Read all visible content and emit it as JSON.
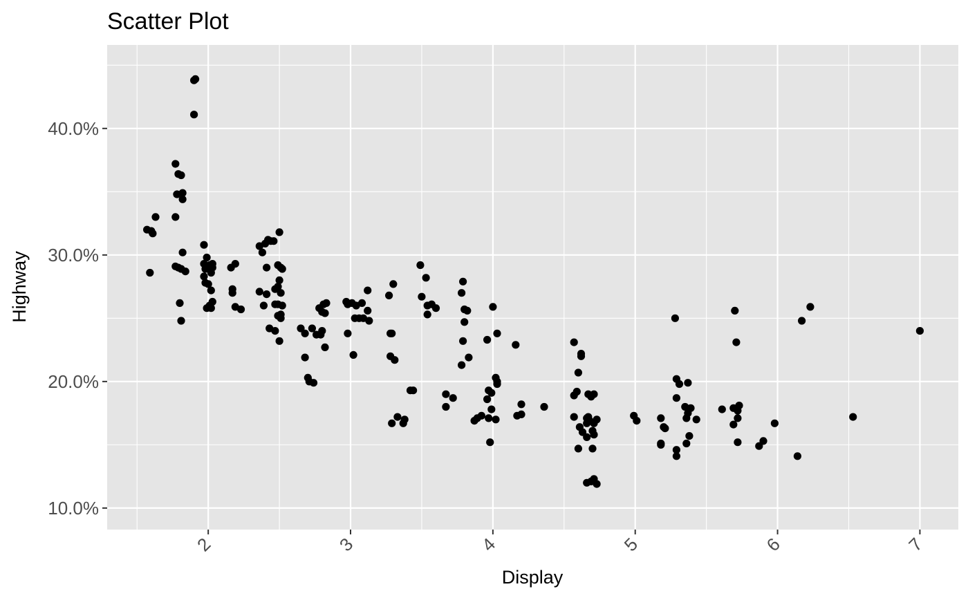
{
  "chart_data": {
    "type": "scatter",
    "title": "Scatter Plot",
    "xlabel": "Display",
    "ylabel": "Highway",
    "x_ticks": [
      2,
      3,
      4,
      5,
      6,
      7
    ],
    "x_tick_labels": [
      "2",
      "3",
      "4",
      "5",
      "6",
      "7"
    ],
    "y_ticks": [
      0.1,
      0.2,
      0.3,
      0.4
    ],
    "y_tick_labels": [
      "10.0%",
      "20.0%",
      "30.0%",
      "40.0%"
    ],
    "xlim": [
      1.29,
      7.27
    ],
    "ylim": [
      0.083,
      0.466
    ],
    "grid": true,
    "legend": "none",
    "colors": {
      "panel": "#e5e5e5",
      "grid": "#ffffff",
      "point": "#000000"
    },
    "points": [
      [
        1.57,
        0.32
      ],
      [
        1.6,
        0.319
      ],
      [
        1.61,
        0.317
      ],
      [
        1.63,
        0.33
      ],
      [
        1.59,
        0.286
      ],
      [
        1.9,
        0.438
      ],
      [
        1.91,
        0.439
      ],
      [
        1.9,
        0.411
      ],
      [
        1.77,
        0.372
      ],
      [
        1.79,
        0.364
      ],
      [
        1.81,
        0.363
      ],
      [
        1.78,
        0.348
      ],
      [
        1.82,
        0.349
      ],
      [
        1.82,
        0.344
      ],
      [
        1.77,
        0.33
      ],
      [
        1.77,
        0.291
      ],
      [
        1.79,
        0.29
      ],
      [
        1.81,
        0.289
      ],
      [
        1.82,
        0.302
      ],
      [
        1.84,
        0.287
      ],
      [
        1.8,
        0.262
      ],
      [
        1.81,
        0.248
      ],
      [
        1.97,
        0.308
      ],
      [
        1.99,
        0.298
      ],
      [
        1.97,
        0.293
      ],
      [
        2.01,
        0.292
      ],
      [
        2.03,
        0.293
      ],
      [
        2.03,
        0.29
      ],
      [
        1.98,
        0.289
      ],
      [
        2.02,
        0.286
      ],
      [
        1.97,
        0.283
      ],
      [
        1.98,
        0.278
      ],
      [
        2.0,
        0.277
      ],
      [
        2.02,
        0.272
      ],
      [
        2.03,
        0.263
      ],
      [
        2.01,
        0.26
      ],
      [
        1.99,
        0.258
      ],
      [
        2.02,
        0.258
      ],
      [
        2.16,
        0.29
      ],
      [
        2.19,
        0.293
      ],
      [
        2.17,
        0.273
      ],
      [
        2.17,
        0.27
      ],
      [
        2.19,
        0.259
      ],
      [
        2.23,
        0.257
      ],
      [
        2.36,
        0.307
      ],
      [
        2.38,
        0.302
      ],
      [
        2.4,
        0.309
      ],
      [
        2.42,
        0.312
      ],
      [
        2.44,
        0.311
      ],
      [
        2.46,
        0.311
      ],
      [
        2.5,
        0.318
      ],
      [
        2.41,
        0.29
      ],
      [
        2.49,
        0.292
      ],
      [
        2.51,
        0.29
      ],
      [
        2.52,
        0.289
      ],
      [
        2.5,
        0.28
      ],
      [
        2.36,
        0.271
      ],
      [
        2.41,
        0.269
      ],
      [
        2.47,
        0.273
      ],
      [
        2.49,
        0.275
      ],
      [
        2.51,
        0.27
      ],
      [
        2.39,
        0.26
      ],
      [
        2.47,
        0.261
      ],
      [
        2.49,
        0.261
      ],
      [
        2.52,
        0.26
      ],
      [
        2.49,
        0.252
      ],
      [
        2.51,
        0.253
      ],
      [
        2.51,
        0.25
      ],
      [
        2.43,
        0.242
      ],
      [
        2.47,
        0.24
      ],
      [
        2.5,
        0.232
      ],
      [
        2.65,
        0.242
      ],
      [
        2.68,
        0.238
      ],
      [
        2.73,
        0.242
      ],
      [
        2.76,
        0.237
      ],
      [
        2.79,
        0.237
      ],
      [
        2.8,
        0.24
      ],
      [
        2.68,
        0.219
      ],
      [
        2.7,
        0.203
      ],
      [
        2.71,
        0.2
      ],
      [
        2.74,
        0.199
      ],
      [
        2.78,
        0.258
      ],
      [
        2.81,
        0.261
      ],
      [
        2.83,
        0.262
      ],
      [
        2.8,
        0.255
      ],
      [
        2.82,
        0.254
      ],
      [
        2.82,
        0.227
      ],
      [
        2.97,
        0.263
      ],
      [
        3.01,
        0.262
      ],
      [
        3.04,
        0.26
      ],
      [
        3.08,
        0.262
      ],
      [
        2.98,
        0.261
      ],
      [
        3.12,
        0.272
      ],
      [
        3.03,
        0.25
      ],
      [
        3.06,
        0.25
      ],
      [
        3.09,
        0.25
      ],
      [
        3.13,
        0.248
      ],
      [
        3.12,
        0.256
      ],
      [
        2.98,
        0.238
      ],
      [
        3.02,
        0.221
      ],
      [
        3.27,
        0.268
      ],
      [
        3.3,
        0.277
      ],
      [
        3.28,
        0.238
      ],
      [
        3.29,
        0.238
      ],
      [
        3.28,
        0.22
      ],
      [
        3.31,
        0.217
      ],
      [
        3.29,
        0.167
      ],
      [
        3.33,
        0.172
      ],
      [
        3.37,
        0.167
      ],
      [
        3.38,
        0.17
      ],
      [
        3.42,
        0.193
      ],
      [
        3.44,
        0.193
      ],
      [
        3.49,
        0.292
      ],
      [
        3.53,
        0.282
      ],
      [
        3.5,
        0.267
      ],
      [
        3.54,
        0.26
      ],
      [
        3.57,
        0.261
      ],
      [
        3.6,
        0.258
      ],
      [
        3.54,
        0.253
      ],
      [
        3.67,
        0.19
      ],
      [
        3.72,
        0.187
      ],
      [
        3.67,
        0.18
      ],
      [
        3.79,
        0.279
      ],
      [
        3.78,
        0.27
      ],
      [
        3.8,
        0.257
      ],
      [
        3.82,
        0.256
      ],
      [
        3.8,
        0.247
      ],
      [
        3.79,
        0.232
      ],
      [
        3.78,
        0.213
      ],
      [
        3.83,
        0.219
      ],
      [
        3.87,
        0.169
      ],
      [
        3.89,
        0.171
      ],
      [
        3.92,
        0.173
      ],
      [
        3.97,
        0.171
      ],
      [
        3.98,
        0.152
      ],
      [
        3.96,
        0.233
      ],
      [
        4.0,
        0.259
      ],
      [
        4.03,
        0.238
      ],
      [
        4.02,
        0.203
      ],
      [
        4.03,
        0.2
      ],
      [
        4.03,
        0.198
      ],
      [
        3.97,
        0.193
      ],
      [
        3.99,
        0.191
      ],
      [
        3.96,
        0.186
      ],
      [
        3.99,
        0.178
      ],
      [
        4.02,
        0.17
      ],
      [
        4.16,
        0.229
      ],
      [
        4.2,
        0.182
      ],
      [
        4.2,
        0.174
      ],
      [
        4.17,
        0.173
      ],
      [
        4.36,
        0.18
      ],
      [
        4.57,
        0.231
      ],
      [
        4.62,
        0.222
      ],
      [
        4.62,
        0.22
      ],
      [
        4.6,
        0.207
      ],
      [
        4.59,
        0.192
      ],
      [
        4.57,
        0.189
      ],
      [
        4.57,
        0.172
      ],
      [
        4.61,
        0.164
      ],
      [
        4.63,
        0.16
      ],
      [
        4.6,
        0.147
      ],
      [
        4.66,
        0.171
      ],
      [
        4.67,
        0.172
      ],
      [
        4.68,
        0.169
      ],
      [
        4.66,
        0.167
      ],
      [
        4.67,
        0.19
      ],
      [
        4.69,
        0.188
      ],
      [
        4.71,
        0.19
      ],
      [
        4.71,
        0.167
      ],
      [
        4.73,
        0.17
      ],
      [
        4.7,
        0.161
      ],
      [
        4.66,
        0.156
      ],
      [
        4.71,
        0.158
      ],
      [
        4.7,
        0.147
      ],
      [
        4.66,
        0.12
      ],
      [
        4.69,
        0.121
      ],
      [
        4.71,
        0.123
      ],
      [
        4.73,
        0.119
      ],
      [
        4.99,
        0.173
      ],
      [
        5.01,
        0.169
      ],
      [
        5.18,
        0.171
      ],
      [
        5.2,
        0.164
      ],
      [
        5.21,
        0.163
      ],
      [
        5.18,
        0.151
      ],
      [
        5.18,
        0.15
      ],
      [
        5.28,
        0.25
      ],
      [
        5.29,
        0.202
      ],
      [
        5.31,
        0.198
      ],
      [
        5.37,
        0.199
      ],
      [
        5.29,
        0.187
      ],
      [
        5.35,
        0.18
      ],
      [
        5.39,
        0.179
      ],
      [
        5.37,
        0.175
      ],
      [
        5.36,
        0.171
      ],
      [
        5.43,
        0.17
      ],
      [
        5.38,
        0.157
      ],
      [
        5.36,
        0.151
      ],
      [
        5.29,
        0.146
      ],
      [
        5.29,
        0.141
      ],
      [
        5.61,
        0.178
      ],
      [
        5.69,
        0.179
      ],
      [
        5.72,
        0.177
      ],
      [
        5.73,
        0.181
      ],
      [
        5.72,
        0.171
      ],
      [
        5.69,
        0.166
      ],
      [
        5.72,
        0.152
      ],
      [
        5.7,
        0.256
      ],
      [
        5.71,
        0.231
      ],
      [
        5.87,
        0.149
      ],
      [
        5.9,
        0.153
      ],
      [
        5.98,
        0.167
      ],
      [
        6.14,
        0.141
      ],
      [
        6.17,
        0.248
      ],
      [
        6.23,
        0.259
      ],
      [
        6.53,
        0.172
      ],
      [
        7.0,
        0.24
      ]
    ]
  }
}
